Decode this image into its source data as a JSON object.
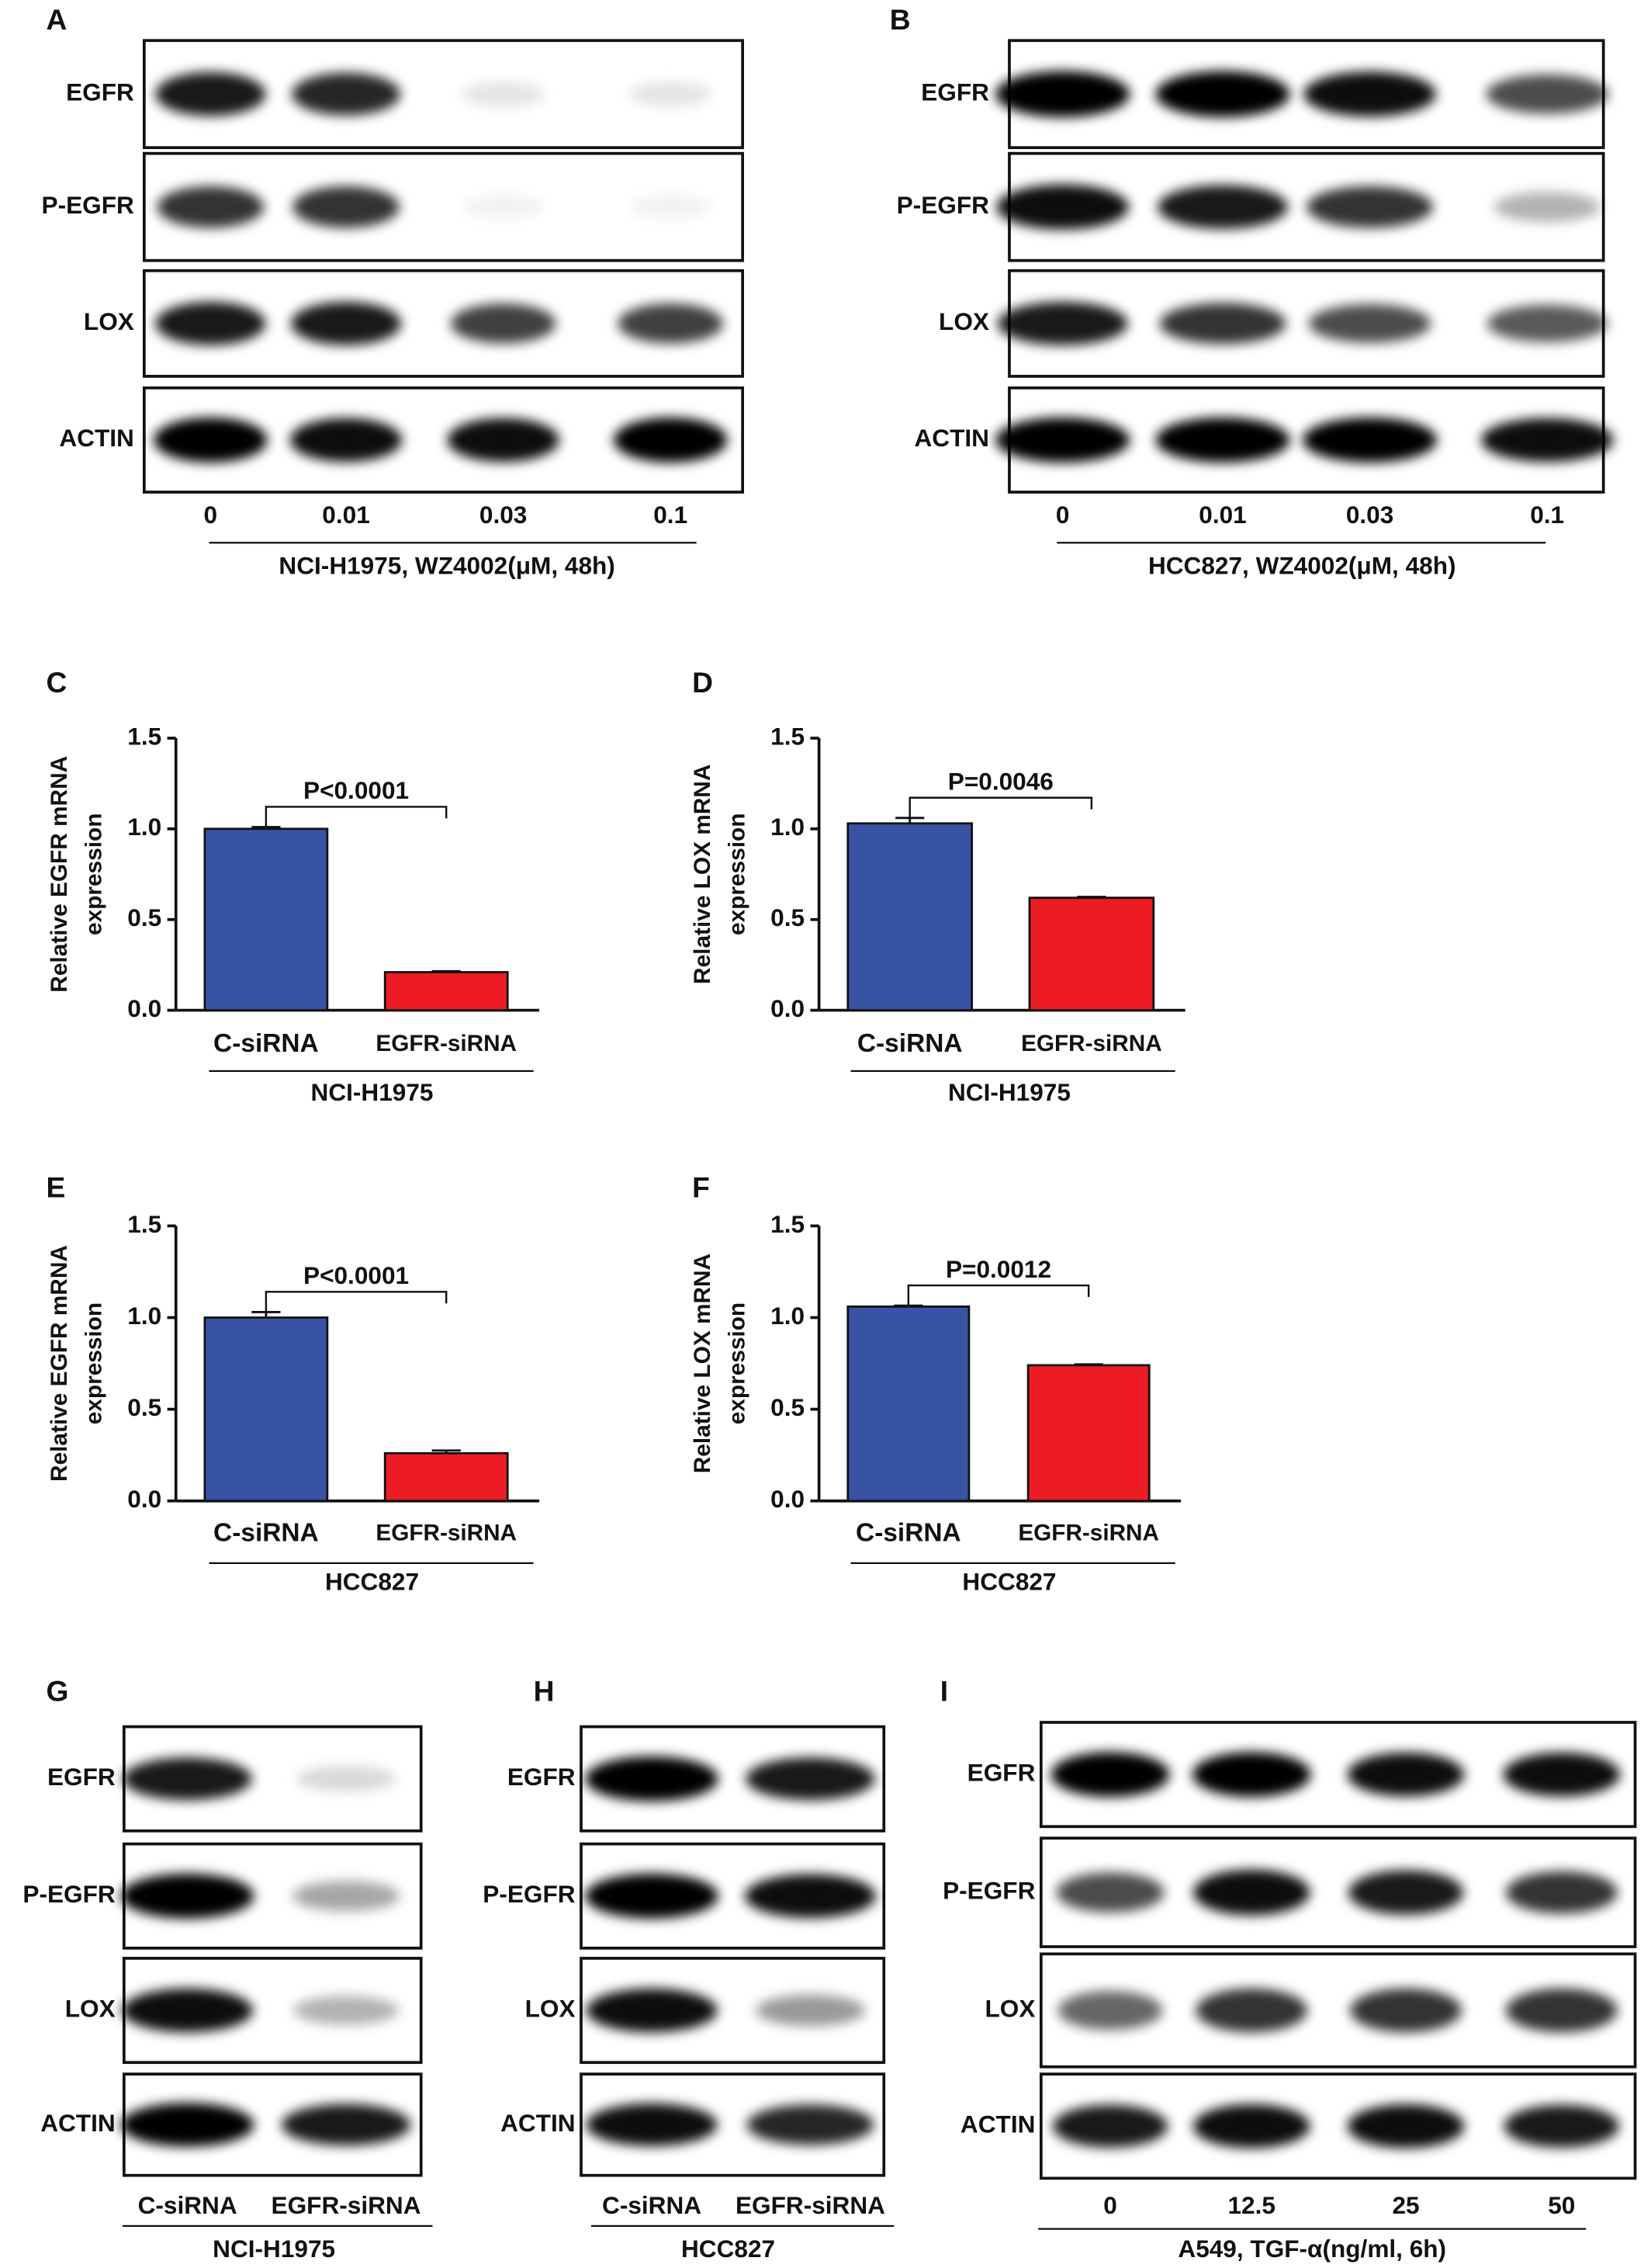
{
  "panels": [
    {
      "label": "A",
      "rows": [
        "EGFR",
        "P-EGFR",
        "LOX",
        "ACTIN"
      ],
      "lanes": [
        "0",
        "0.01",
        "0.03",
        "0.1"
      ],
      "caption": "NCI-H1975, WZ4002(μM, 48h)"
    },
    {
      "label": "B",
      "rows": [
        "EGFR",
        "P-EGFR",
        "LOX",
        "ACTIN"
      ],
      "lanes": [
        "0",
        "0.01",
        "0.03",
        "0.1"
      ],
      "caption": "HCC827, WZ4002(μM, 48h)"
    },
    {
      "label": "G",
      "rows": [
        "EGFR",
        "P-EGFR",
        "LOX",
        "ACTIN"
      ],
      "lanes": [
        "C-siRNA",
        "EGFR-siRNA"
      ],
      "caption": "NCI-H1975"
    },
    {
      "label": "H",
      "rows": [
        "EGFR",
        "P-EGFR",
        "LOX",
        "ACTIN"
      ],
      "lanes": [
        "C-siRNA",
        "EGFR-siRNA"
      ],
      "caption": "HCC827"
    },
    {
      "label": "I",
      "rows": [
        "EGFR",
        "P-EGFR",
        "LOX",
        "ACTIN"
      ],
      "lanes": [
        "0",
        "12.5",
        "25",
        "50"
      ],
      "caption": "A549, TGF-α(ng/ml, 6h)"
    }
  ],
  "chart_data": [
    {
      "type": "bar",
      "panel": "C",
      "ylabel": [
        "Relative EGFR mRNA",
        "expression"
      ],
      "xlabel": "NCI-H1975",
      "annotation": "P<0.0001",
      "categories": [
        "C-siRNA",
        "EGFR-siRNA"
      ],
      "values": [
        1.0,
        0.21
      ],
      "errors": [
        0.01,
        0.005
      ],
      "colors": [
        "#3953a4",
        "#ed1c24"
      ],
      "ylim": [
        0,
        1.5
      ],
      "yticks": [
        {
          "value": 0,
          "label": "0.0"
        },
        0.5,
        {
          "value": 1,
          "label": "1.0"
        },
        1.5
      ]
    },
    {
      "type": "bar",
      "panel": "D",
      "ylabel": [
        "Relative LOX mRNA",
        "expression"
      ],
      "xlabel": "NCI-H1975",
      "annotation": "P=0.0046",
      "categories": [
        "C-siRNA",
        "EGFR-siRNA"
      ],
      "values": [
        1.03,
        0.62
      ],
      "errors": [
        0.03,
        0.005
      ],
      "colors": [
        "#3953a4",
        "#ed1c24"
      ],
      "ylim": [
        0,
        1.5
      ],
      "yticks": [
        {
          "value": 0,
          "label": "0.0"
        },
        0.5,
        {
          "value": 1,
          "label": "1.0"
        },
        1.5
      ]
    },
    {
      "type": "bar",
      "panel": "E",
      "ylabel": [
        "Relative EGFR mRNA",
        "expression"
      ],
      "xlabel": "HCC827",
      "annotation": "P<0.0001",
      "categories": [
        "C-siRNA",
        "EGFR-siRNA"
      ],
      "values": [
        1.0,
        0.26
      ],
      "errors": [
        0.03,
        0.015
      ],
      "colors": [
        "#3953a4",
        "#ed1c24"
      ],
      "ylim": [
        0,
        1.5
      ],
      "yticks": [
        {
          "value": 0,
          "label": "0.0"
        },
        0.5,
        {
          "value": 1,
          "label": "1.0"
        },
        1.5
      ]
    },
    {
      "type": "bar",
      "panel": "F",
      "ylabel": [
        "Relative LOX mRNA",
        "expression"
      ],
      "xlabel": "HCC827",
      "annotation": "P=0.0012",
      "categories": [
        "C-siRNA",
        "EGFR-siRNA"
      ],
      "values": [
        1.06,
        0.74
      ],
      "errors": [
        0.005,
        0.005
      ],
      "colors": [
        "#3953a4",
        "#ed1c24"
      ],
      "ylim": [
        0,
        1.5
      ],
      "yticks": [
        {
          "value": 0,
          "label": "0.0"
        },
        0.5,
        {
          "value": 1,
          "label": "1.0"
        },
        1.5
      ]
    }
  ]
}
